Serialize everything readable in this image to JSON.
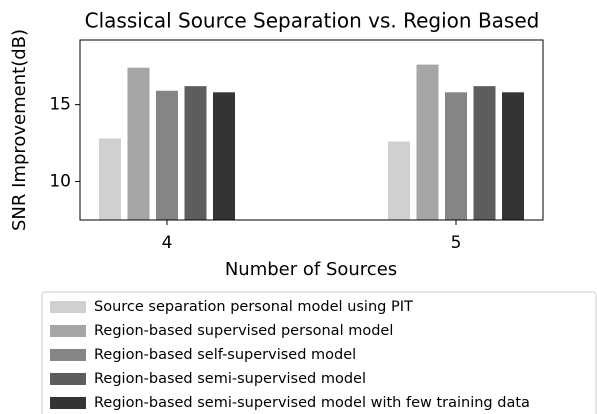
{
  "chart_data": {
    "type": "bar",
    "title": "Classical Source Separation vs. Region Based",
    "xlabel": "Number of Sources",
    "ylabel": "SNR Improvement(dB)",
    "categories": [
      "4",
      "5"
    ],
    "series": [
      {
        "name": "Source separation personal model using PIT",
        "color": "#d0d0d0",
        "values": [
          12.8,
          12.6
        ]
      },
      {
        "name": "Region-based supervised personal model",
        "color": "#a6a6a6",
        "values": [
          17.4,
          17.6
        ]
      },
      {
        "name": "Region-based self-supervised model",
        "color": "#858585",
        "values": [
          15.9,
          15.8
        ]
      },
      {
        "name": "Region-based semi-supervised model",
        "color": "#5d5d5d",
        "values": [
          16.2,
          16.2
        ]
      },
      {
        "name": "Region-based semi-supervised model with few training data",
        "color": "#343434",
        "values": [
          15.8,
          15.8
        ]
      }
    ],
    "ylim": [
      7.5,
      19.2
    ],
    "yticks": [
      10,
      15
    ],
    "legend": "lower center"
  }
}
